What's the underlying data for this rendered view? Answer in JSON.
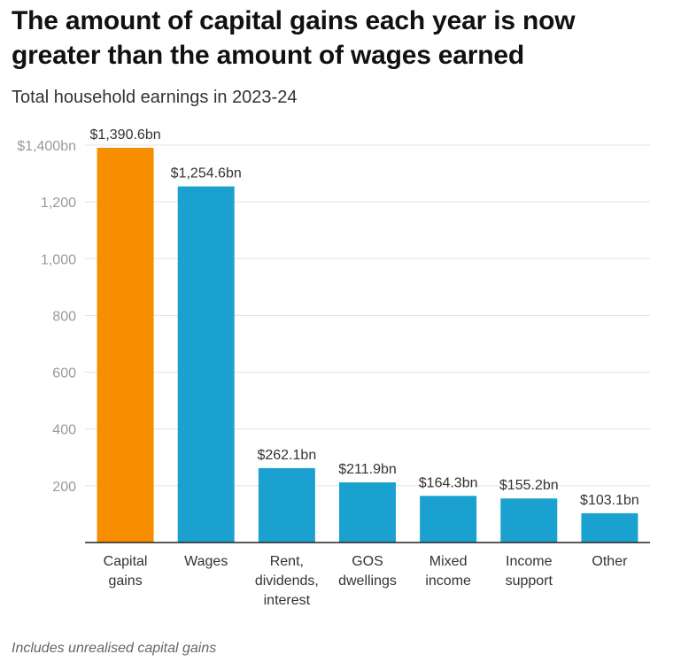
{
  "chart_data": {
    "type": "bar",
    "title": "The amount of capital gains each year is now greater than the amount of wages earned",
    "subtitle": "Total household earnings in 2023-24",
    "note": "Includes unrealised capital gains",
    "categories": [
      [
        "Capital",
        "gains"
      ],
      [
        "Wages"
      ],
      [
        "Rent,",
        "dividends,",
        "interest"
      ],
      [
        "GOS",
        "dwellings"
      ],
      [
        "Mixed",
        "income"
      ],
      [
        "Income",
        "support"
      ],
      [
        "Other"
      ]
    ],
    "values": [
      1390.6,
      1254.6,
      262.1,
      211.9,
      164.3,
      155.2,
      103.1
    ],
    "data_labels": [
      "$1,390.6bn",
      "$1,254.6bn",
      "$262.1bn",
      "$211.9bn",
      "$164.3bn",
      "$155.2bn",
      "$103.1bn"
    ],
    "y_ticks": [
      {
        "value": 200,
        "label": "200"
      },
      {
        "value": 400,
        "label": "400"
      },
      {
        "value": 600,
        "label": "600"
      },
      {
        "value": 800,
        "label": "800"
      },
      {
        "value": 1000,
        "label": "1,000"
      },
      {
        "value": 1200,
        "label": "1,200"
      },
      {
        "value": 1400,
        "label": "$1,400bn"
      }
    ],
    "ylim": [
      0,
      1400
    ],
    "grid": true,
    "legend": "none",
    "colors": {
      "highlight": "#f78e00",
      "bar": "#1aa1cf",
      "grid": "#e3e3e3",
      "axis": "#222222"
    },
    "highlight_index": 0
  }
}
